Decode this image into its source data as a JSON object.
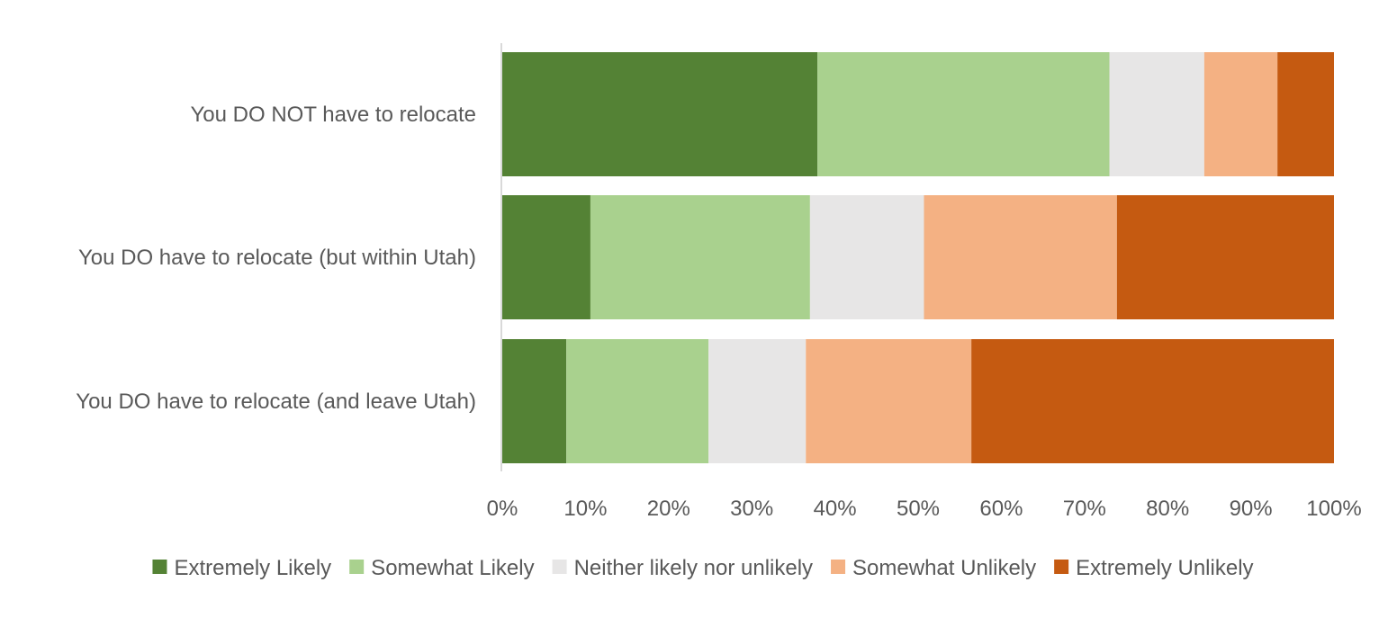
{
  "chart_data": {
    "type": "bar",
    "orientation": "horizontal",
    "stacked": "percent",
    "categories": [
      "You DO NOT have to relocate",
      "You DO have to relocate (but within Utah)",
      "You DO have to relocate (and leave Utah)"
    ],
    "series": [
      {
        "name": "Extremely Likely",
        "color": "#548235",
        "values": [
          37.9,
          10.6,
          7.7
        ]
      },
      {
        "name": "Somewhat Likely",
        "color": "#a9d18e",
        "values": [
          35.1,
          26.4,
          17.1
        ]
      },
      {
        "name": "Neither likely nor unlikely",
        "color": "#e7e6e6",
        "values": [
          11.4,
          13.7,
          11.7
        ]
      },
      {
        "name": "Somewhat Unlikely",
        "color": "#f4b183",
        "values": [
          8.8,
          23.2,
          19.9
        ]
      },
      {
        "name": "Extremely Unlikely",
        "color": "#c55a11",
        "values": [
          6.8,
          26.1,
          43.6
        ]
      }
    ],
    "xlim": [
      0,
      100
    ],
    "x_ticks": [
      "0%",
      "10%",
      "20%",
      "30%",
      "40%",
      "50%",
      "60%",
      "70%",
      "80%",
      "90%",
      "100%"
    ],
    "legend_position": "bottom",
    "grid": false
  }
}
